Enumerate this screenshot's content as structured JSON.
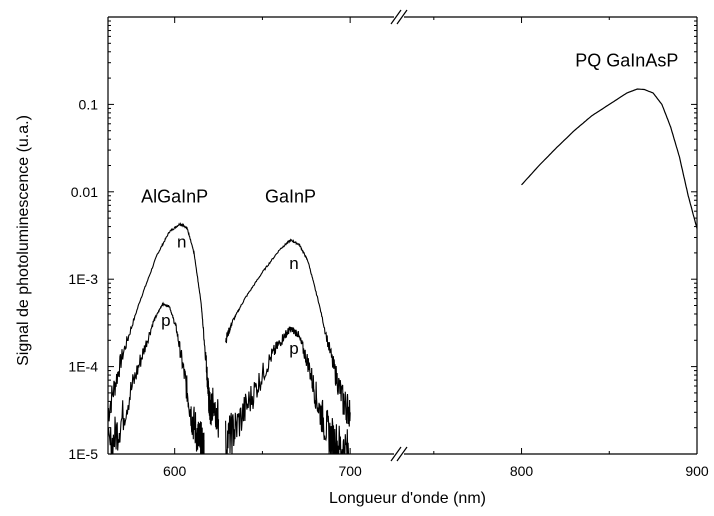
{
  "chart_data": {
    "type": "line",
    "xlabel": "Longueur d'onde (nm)",
    "ylabel": "Signal de photoluminescence (u.a.)",
    "y_scale": "log",
    "ylim": [
      1e-05,
      1
    ],
    "x_axis_break": true,
    "x_segments": [
      {
        "xlim": [
          562,
          721
        ],
        "ticks": [
          600,
          700
        ]
      },
      {
        "xlim": [
          737,
          900
        ],
        "ticks": [
          800,
          900
        ]
      }
    ],
    "y_ticks": [
      {
        "value": 1e-05,
        "label": "1E-5"
      },
      {
        "value": 0.0001,
        "label": "1E-4"
      },
      {
        "value": 0.001,
        "label": "1E-3"
      },
      {
        "value": 0.01,
        "label": "0.01"
      },
      {
        "value": 0.1,
        "label": "0.1"
      }
    ],
    "x_tick_labels": [
      "600",
      "700",
      "800",
      "900"
    ],
    "annotations": [
      {
        "text": "AlGaInP",
        "x": 600,
        "y": 0.0075
      },
      {
        "text": "GaInP",
        "x": 666,
        "y": 0.0075
      },
      {
        "text": "PQ GaInAsP",
        "x": 860,
        "y": 0.27
      },
      {
        "text": "n",
        "x": 604,
        "y": 0.0023
      },
      {
        "text": "p",
        "x": 595,
        "y": 0.00029
      },
      {
        "text": "n",
        "x": 668,
        "y": 0.0013
      },
      {
        "text": "p",
        "x": 668,
        "y": 0.00014
      }
    ],
    "series": [
      {
        "segment": 0,
        "noisy": true,
        "x": [
          562,
          570,
          580,
          590,
          597,
          603,
          607,
          611,
          615,
          618,
          619.5,
          620.5,
          622,
          625
        ],
        "y": [
          3e-05,
          0.00013,
          0.00055,
          0.0019,
          0.0035,
          0.0043,
          0.0039,
          0.002,
          0.00055,
          0.00011,
          4e-05,
          3e-05,
          4e-05,
          2.5e-05
        ]
      },
      {
        "segment": 0,
        "noisy": true,
        "x": [
          562,
          570,
          580,
          588,
          593,
          597,
          601,
          606,
          610,
          614,
          616.3,
          616.8
        ],
        "y": [
          1e-05,
          2.5e-05,
          0.00011,
          0.00033,
          0.00052,
          0.00049,
          0.00027,
          7e-05,
          2.5e-05,
          1.4e-05,
          1.1e-05,
          1e-05
        ]
      },
      {
        "segment": 0,
        "noisy": true,
        "x": [
          629,
          633,
          640,
          650,
          660,
          666,
          671,
          676,
          682,
          690,
          696,
          700
        ],
        "y": [
          0.0002,
          0.00033,
          0.0006,
          0.0012,
          0.0022,
          0.0028,
          0.0025,
          0.0016,
          0.00055,
          0.00011,
          4e-05,
          3e-05
        ]
      },
      {
        "segment": 0,
        "noisy": true,
        "x": [
          629,
          635,
          645,
          655,
          662,
          666,
          670,
          676,
          682,
          688,
          694,
          700
        ],
        "y": [
          1.4e-05,
          2e-05,
          5e-05,
          0.00013,
          0.00022,
          0.00027,
          0.00024,
          0.00011,
          3.5e-05,
          1.6e-05,
          1.2e-05,
          1e-05
        ]
      },
      {
        "segment": 1,
        "noisy": false,
        "x": [
          800,
          810,
          820,
          830,
          840,
          850,
          860,
          866,
          870,
          875,
          880,
          885,
          890,
          895,
          900
        ],
        "y": [
          0.012,
          0.02,
          0.032,
          0.05,
          0.074,
          0.1,
          0.135,
          0.15,
          0.148,
          0.135,
          0.1,
          0.055,
          0.025,
          0.009,
          0.0038
        ]
      }
    ]
  }
}
